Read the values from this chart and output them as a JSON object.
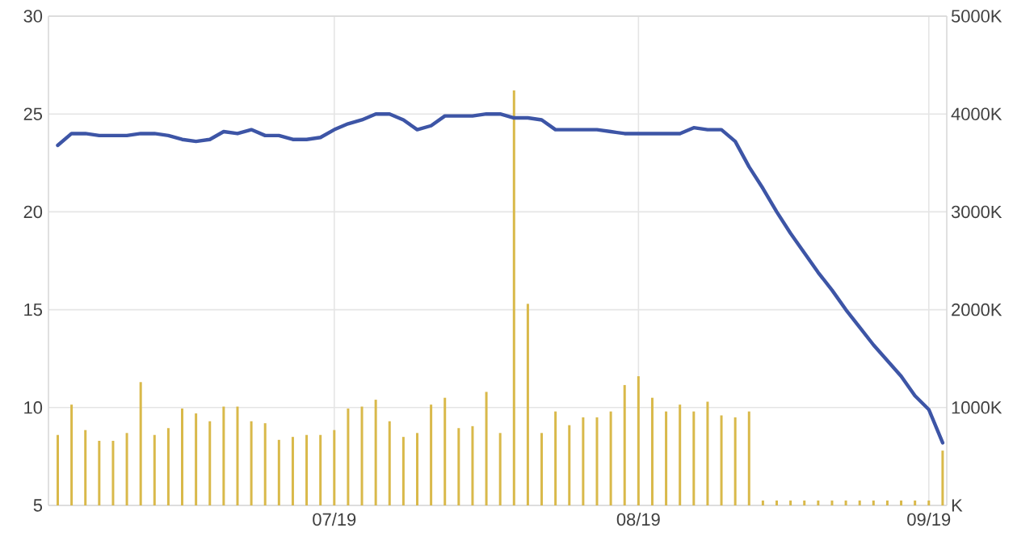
{
  "chart_data": {
    "type": "line",
    "categories": [
      null,
      null,
      null,
      null,
      null,
      null,
      null,
      null,
      null,
      null,
      null,
      null,
      null,
      null,
      null,
      null,
      null,
      null,
      null,
      null,
      "07/19",
      null,
      null,
      null,
      null,
      null,
      null,
      null,
      null,
      null,
      null,
      null,
      null,
      null,
      null,
      null,
      null,
      null,
      null,
      null,
      null,
      null,
      "08/19",
      null,
      null,
      null,
      null,
      null,
      null,
      null,
      null,
      null,
      null,
      null,
      null,
      null,
      null,
      null,
      null,
      null,
      null,
      null,
      null,
      "09/19",
      null
    ],
    "series": [
      {
        "type": "bar",
        "axis": "y2",
        "color": "#d9b94a",
        "values": [
          720,
          1030,
          770,
          660,
          660,
          740,
          1260,
          720,
          790,
          990,
          940,
          860,
          1010,
          1010,
          860,
          840,
          670,
          700,
          720,
          720,
          770,
          990,
          1010,
          1080,
          860,
          700,
          740,
          1030,
          1100,
          790,
          810,
          1160,
          740,
          4240,
          2060,
          740,
          960,
          820,
          900,
          900,
          960,
          1230,
          1320,
          1100,
          960,
          1030,
          960,
          1060,
          920,
          900,
          960,
          50,
          50,
          50,
          50,
          50,
          50,
          50,
          50,
          50,
          50,
          50,
          50,
          50,
          560
        ]
      },
      {
        "color": "#3d55a6",
        "values": [
          23.4,
          24.0,
          24.0,
          23.9,
          23.9,
          23.9,
          24.0,
          24.0,
          23.9,
          23.7,
          23.6,
          23.7,
          24.1,
          24.0,
          24.2,
          23.9,
          23.9,
          23.7,
          23.7,
          23.8,
          24.2,
          24.5,
          24.7,
          25.0,
          25.0,
          24.7,
          24.2,
          24.4,
          24.9,
          24.9,
          24.9,
          25.0,
          25.0,
          24.8,
          24.8,
          24.7,
          24.2,
          24.2,
          24.2,
          24.2,
          24.1,
          24.0,
          24.0,
          24.0,
          24.0,
          24.0,
          24.3,
          24.2,
          24.2,
          23.6,
          22.3,
          21.2,
          20.0,
          18.9,
          17.9,
          16.9,
          16.0,
          15.0,
          14.1,
          13.2,
          12.4,
          11.6,
          10.6,
          9.9,
          8.2
        ]
      }
    ],
    "ylim": [
      5,
      30
    ],
    "yticks": [
      5,
      10,
      15,
      20,
      25,
      30
    ],
    "y2lim": [
      0,
      5000
    ],
    "y2ticks": [
      {
        "value": 0,
        "label": "K"
      },
      {
        "value": 1000,
        "label": "1000K"
      },
      {
        "value": 2000,
        "label": "2000K"
      },
      {
        "value": 3000,
        "label": "3000K"
      },
      {
        "value": 4000,
        "label": "4000K"
      },
      {
        "value": 5000,
        "label": "5000K"
      }
    ],
    "grid": true
  }
}
